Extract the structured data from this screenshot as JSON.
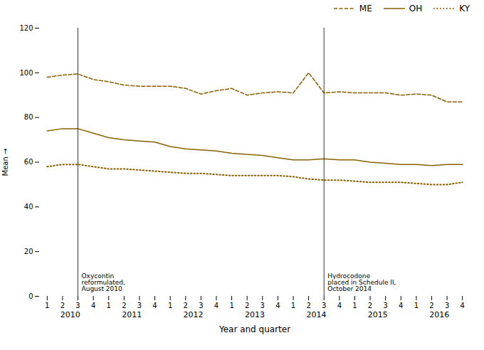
{
  "chart_data": {
    "type": "line",
    "xlabel": "Year and quarter",
    "ylabel": "Mean",
    "categories": [
      "1",
      "2",
      "3",
      "4",
      "1",
      "2",
      "3",
      "4",
      "1",
      "2",
      "3",
      "4",
      "1",
      "2",
      "3",
      "4",
      "1",
      "2",
      "3",
      "4",
      "1",
      "2",
      "3",
      "4",
      "1",
      "2",
      "3",
      "4"
    ],
    "x_groups": [
      "2010",
      "2011",
      "2012",
      "2013",
      "2014",
      "2015",
      "2016"
    ],
    "series": [
      {
        "name": "ME",
        "color": "#8B6000",
        "line_style": "dashed",
        "values": [
          98,
          99,
          99.5,
          97,
          96,
          94.5,
          94,
          94,
          94,
          93,
          90.5,
          92,
          93,
          90,
          91,
          91.5,
          91,
          100,
          91,
          91.5,
          91,
          91,
          91,
          90,
          90.5,
          90,
          87,
          87
        ]
      },
      {
        "name": "OH",
        "color": "#8B6000",
        "line_style": "solid",
        "values": [
          74,
          75,
          75,
          73,
          71,
          70,
          69.5,
          69,
          67,
          66,
          65.5,
          65,
          64,
          63.5,
          63,
          62,
          61,
          61,
          61.5,
          61,
          61,
          60,
          59.5,
          59,
          59,
          58.5,
          59,
          59
        ]
      },
      {
        "name": "KY",
        "color": "#8B6000",
        "line_style": "dotted",
        "values": [
          58,
          59,
          59,
          58,
          57,
          57,
          56.5,
          56,
          55.5,
          55,
          55,
          54.5,
          54,
          54,
          54,
          54,
          53.5,
          52.5,
          52,
          52,
          51.5,
          51,
          51,
          51,
          50.5,
          50,
          50,
          51
        ]
      }
    ],
    "ylim": [
      0,
      120
    ],
    "yticks": [
      0,
      20,
      40,
      60,
      80,
      100,
      120
    ],
    "grid": false,
    "legend": "upper right",
    "annotations": [
      {
        "text": "Oxycontin\nreformulated,\nAugust 2010",
        "x": 2
      },
      {
        "text": "Hydrocodone\nplaced in Schedule II,\nOctober 2014",
        "x": 18
      }
    ]
  }
}
